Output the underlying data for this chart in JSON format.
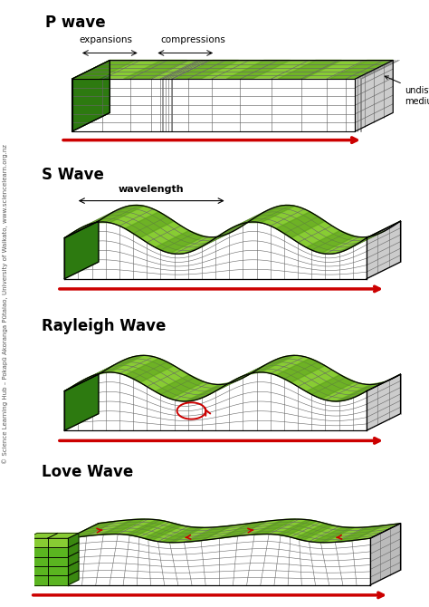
{
  "bg_color": "#ffffff",
  "wave_titles": [
    "P wave",
    "S Wave",
    "Rayleigh Wave",
    "Love Wave"
  ],
  "title_fontsize": 12,
  "label_fontsize": 8,
  "grid_color": "#666666",
  "top_fill_dark": "#5a9e1a",
  "top_fill_light": "#88cc33",
  "front_fill": "#2d7a10",
  "arrow_color": "#cc0000",
  "watermark": "© Science Learning Hub – Pokapū Akoranga Pūtaiao, University of Waikato, www.sciencelearn.org.nz"
}
